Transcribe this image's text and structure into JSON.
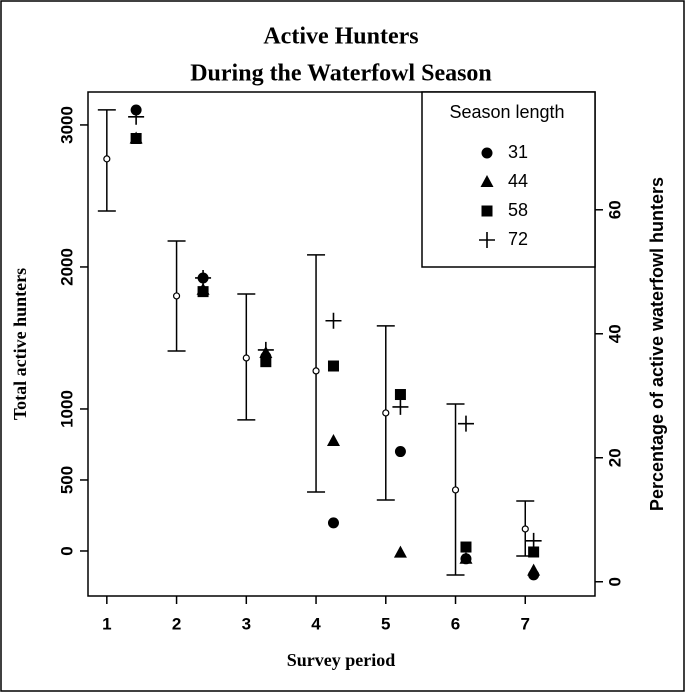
{
  "chart_data": {
    "type": "scatter",
    "title": "Active Hunters",
    "subtitle": "During the Waterfowl Season",
    "xlabel": "Survey period",
    "ylabel": "Total active hunters",
    "y2label": "Percentage of active waterfowl hunters",
    "xlim": [
      0.73,
      8.0
    ],
    "xticks": [
      1,
      2,
      3,
      4,
      5,
      6,
      7
    ],
    "ylim": [
      -317,
      3232
    ],
    "yticks": [
      0,
      500,
      1000,
      2000,
      3000
    ],
    "y2lim": [
      -2.3,
      79
    ],
    "y2ticks": [
      0,
      20,
      40,
      60
    ],
    "color": "#000000",
    "means": {
      "x": [
        1,
        2,
        3,
        4,
        5,
        6,
        7
      ],
      "values": [
        2761,
        1796,
        1359,
        1268,
        972,
        430,
        155
      ],
      "lower": [
        2394,
        1408,
        923,
        415,
        359,
        -169,
        -35
      ],
      "upper": [
        3106,
        2183,
        1810,
        2085,
        1585,
        1035,
        352
      ]
    },
    "legend_title": "Season length",
    "legend": "top-right",
    "series": [
      {
        "name": "31",
        "marker": "circle",
        "axis": "y2",
        "color": "#000000",
        "x": [
          1.42,
          2.38,
          3.28,
          4.25,
          5.21,
          6.15,
          7.12
        ],
        "values": [
          76.1,
          49.0,
          36.3,
          9.5,
          21.0,
          3.7,
          1.1
        ]
      },
      {
        "name": "44",
        "marker": "triangle",
        "axis": "y2",
        "color": "#000000",
        "x": [
          1.42,
          2.38,
          3.28,
          4.25,
          5.21,
          6.15,
          7.12
        ],
        "values": [
          71.5,
          47.1,
          36.9,
          22.7,
          4.7,
          3.7,
          1.8
        ]
      },
      {
        "name": "58",
        "marker": "square",
        "axis": "y2",
        "color": "#000000",
        "x": [
          1.42,
          2.38,
          3.28,
          4.25,
          5.21,
          6.15,
          7.12
        ],
        "values": [
          71.5,
          46.8,
          35.5,
          34.8,
          30.2,
          5.6,
          4.8
        ]
      },
      {
        "name": "72",
        "marker": "plus",
        "axis": "y2",
        "color": "#000000",
        "x": [
          1.42,
          2.38,
          3.28,
          4.25,
          5.21,
          6.15,
          7.12
        ],
        "values": [
          75.0,
          49.0,
          37.4,
          42.1,
          28.2,
          25.5,
          6.6
        ]
      }
    ]
  }
}
